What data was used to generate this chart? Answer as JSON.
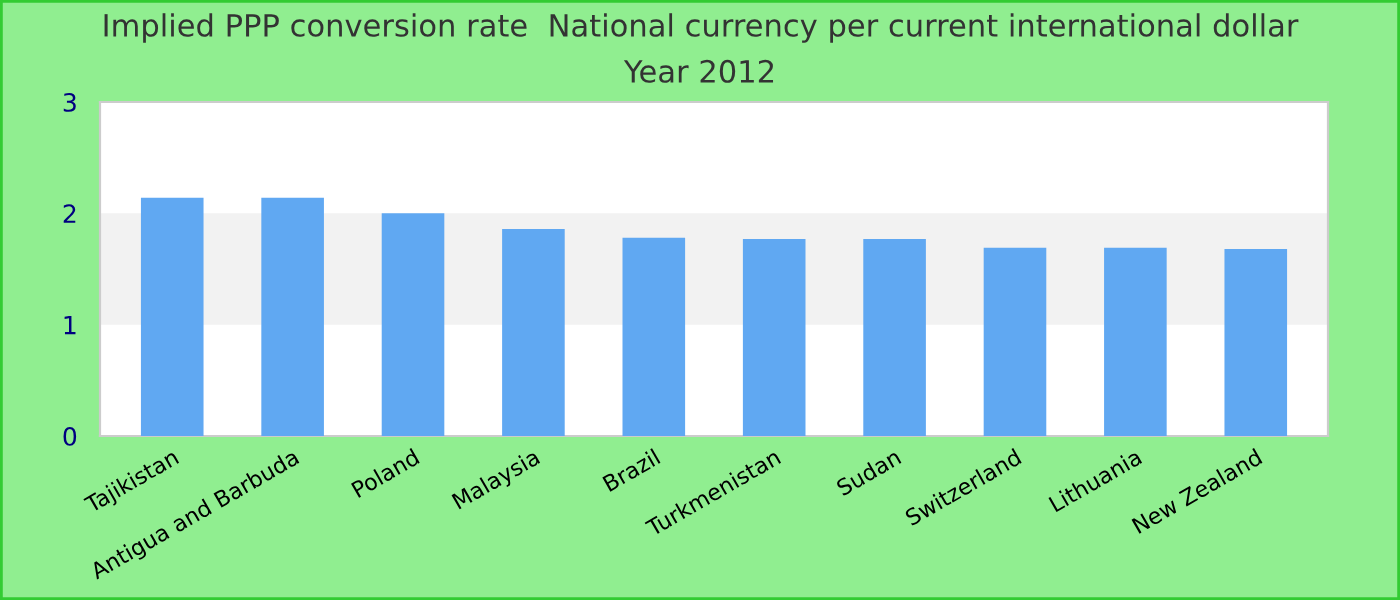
{
  "chart_data": {
    "type": "bar",
    "title": "Implied PPP conversion rate  National currency per current international dollar",
    "subtitle": "Year 2012",
    "categories": [
      "Tajikistan",
      "Antigua and Barbuda",
      "Poland",
      "Malaysia",
      "Brazil",
      "Turkmenistan",
      "Sudan",
      "Switzerland",
      "Lithuania",
      "New Zealand"
    ],
    "values": [
      2.14,
      2.14,
      2.0,
      1.86,
      1.78,
      1.77,
      1.77,
      1.69,
      1.69,
      1.68
    ],
    "color": "#60a8f2",
    "ylim": [
      0,
      3
    ],
    "yticks": [
      0,
      1,
      2,
      3
    ],
    "bands": [
      {
        "axis": "y",
        "from": 1,
        "to": 2,
        "color": "#f2f2f2"
      }
    ]
  }
}
